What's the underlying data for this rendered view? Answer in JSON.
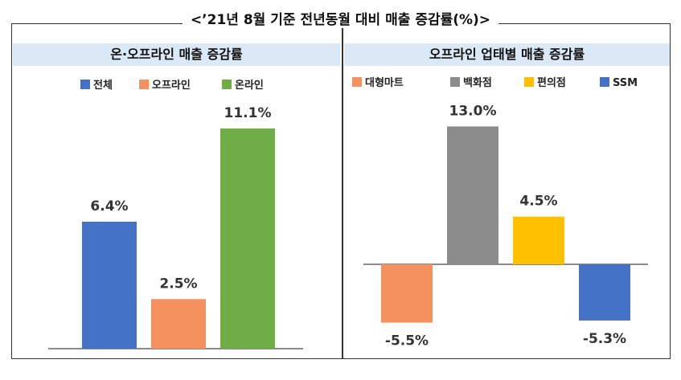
{
  "title": "<’21년 8월 기준 전년동월 대비 매출 증감률(%)>",
  "chart_data": [
    {
      "type": "bar",
      "title": "온·오프라인 매출 증감률",
      "categories": [
        "전체",
        "오프라인",
        "온라인"
      ],
      "values": [
        6.4,
        2.5,
        11.1
      ],
      "labels": [
        "6.4%",
        "2.5%",
        "11.1%"
      ],
      "colors": [
        "#4472c4",
        "#f4915e",
        "#70ad47"
      ],
      "legend_position": "top"
    },
    {
      "type": "bar",
      "title": "오프라인 업태별 매출 증감률",
      "categories": [
        "대형마트",
        "백화점",
        "편의점",
        "SSM"
      ],
      "values": [
        -5.5,
        13.0,
        4.5,
        -5.3
      ],
      "labels": [
        "-5.5%",
        "13.0%",
        "4.5%",
        "-5.3%"
      ],
      "colors": [
        "#f4915e",
        "#8c8c8c",
        "#ffc000",
        "#4472c4"
      ],
      "legend_position": "top"
    }
  ]
}
